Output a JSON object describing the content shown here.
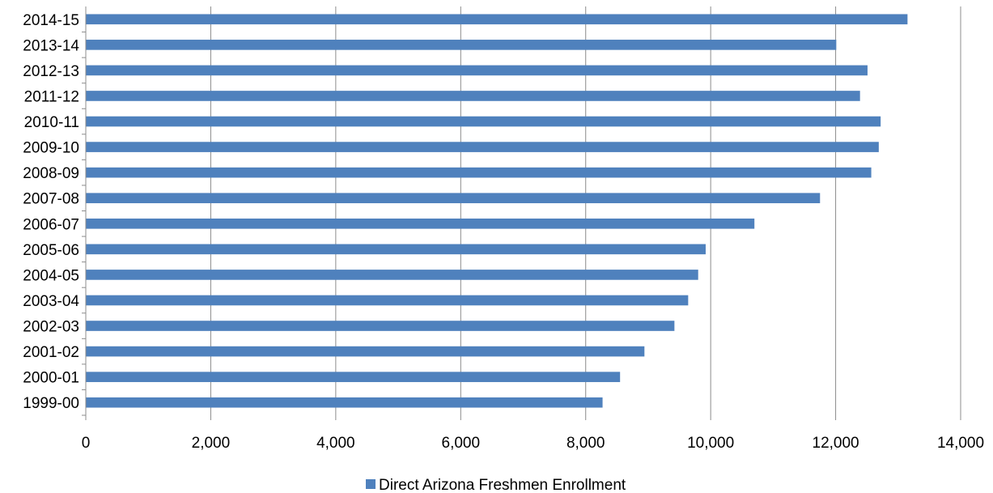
{
  "chart_data": {
    "type": "bar",
    "orientation": "horizontal",
    "categories": [
      "1999-00",
      "2000-01",
      "2001-02",
      "2002-03",
      "2003-04",
      "2004-05",
      "2005-06",
      "2006-07",
      "2007-08",
      "2008-09",
      "2009-10",
      "2010-11",
      "2011-12",
      "2012-13",
      "2013-14",
      "2014-15"
    ],
    "series": [
      {
        "name": "Direct Arizona Freshmen Enrollment",
        "color": "#4f81bd",
        "values": [
          8270,
          8550,
          8940,
          9420,
          9640,
          9800,
          9920,
          10700,
          11750,
          12570,
          12690,
          12720,
          12390,
          12510,
          12010,
          13150
        ]
      }
    ],
    "xlim": [
      0,
      14000
    ],
    "x_ticks": [
      0,
      2000,
      4000,
      6000,
      8000,
      10000,
      12000,
      14000
    ],
    "x_tick_labels": [
      "0",
      "2,000",
      "4,000",
      "6,000",
      "8,000",
      "10,000",
      "12,000",
      "14,000"
    ],
    "grid": "vertical",
    "legend": "bottom"
  }
}
